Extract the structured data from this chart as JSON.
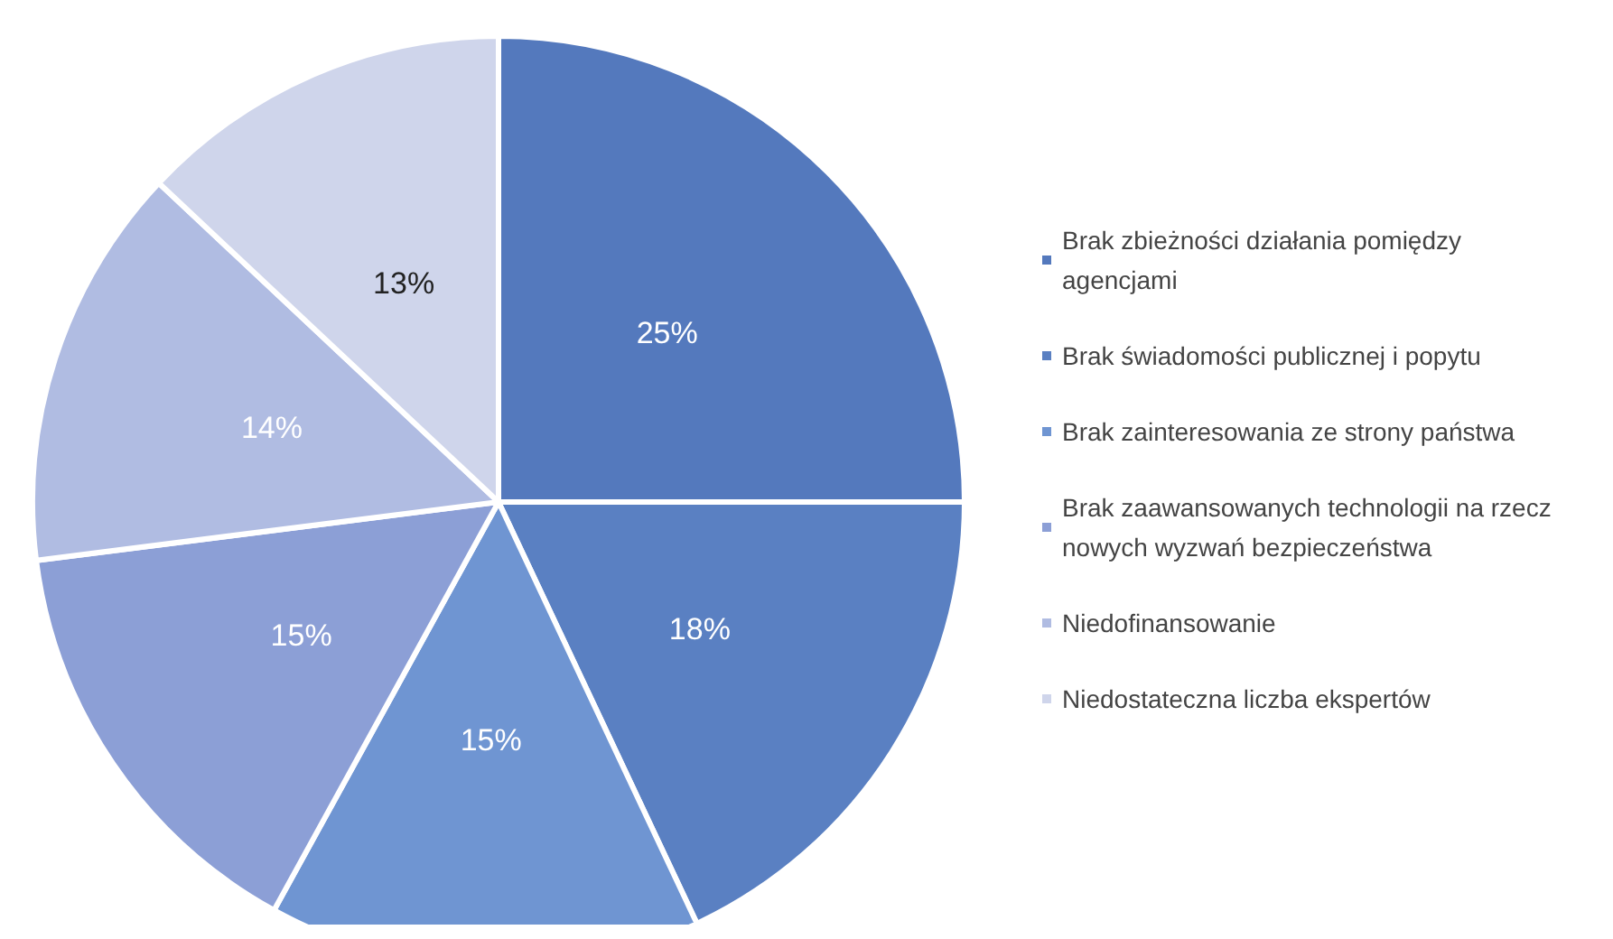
{
  "chart_data": {
    "type": "pie",
    "categories": [
      "Brak zbieżności działania pomiędzy agencjami",
      "Brak świadomości publicznej i popytu",
      "Brak zainteresowania ze strony państwa",
      "Brak zaawansowanych technologii na rzecz nowych wyzwań bezpieczeństwa",
      "Niedofinansowanie",
      "Niedostateczna liczba ekspertów"
    ],
    "values": [
      25,
      18,
      15,
      15,
      14,
      13
    ],
    "value_labels": [
      "25%",
      "18%",
      "15%",
      "15%",
      "14%",
      "13%"
    ],
    "colors": [
      "#5479bd",
      "#5a80c2",
      "#6f95d2",
      "#8c9fd6",
      "#b0bce2",
      "#cfd5eb"
    ],
    "legend": "right"
  }
}
